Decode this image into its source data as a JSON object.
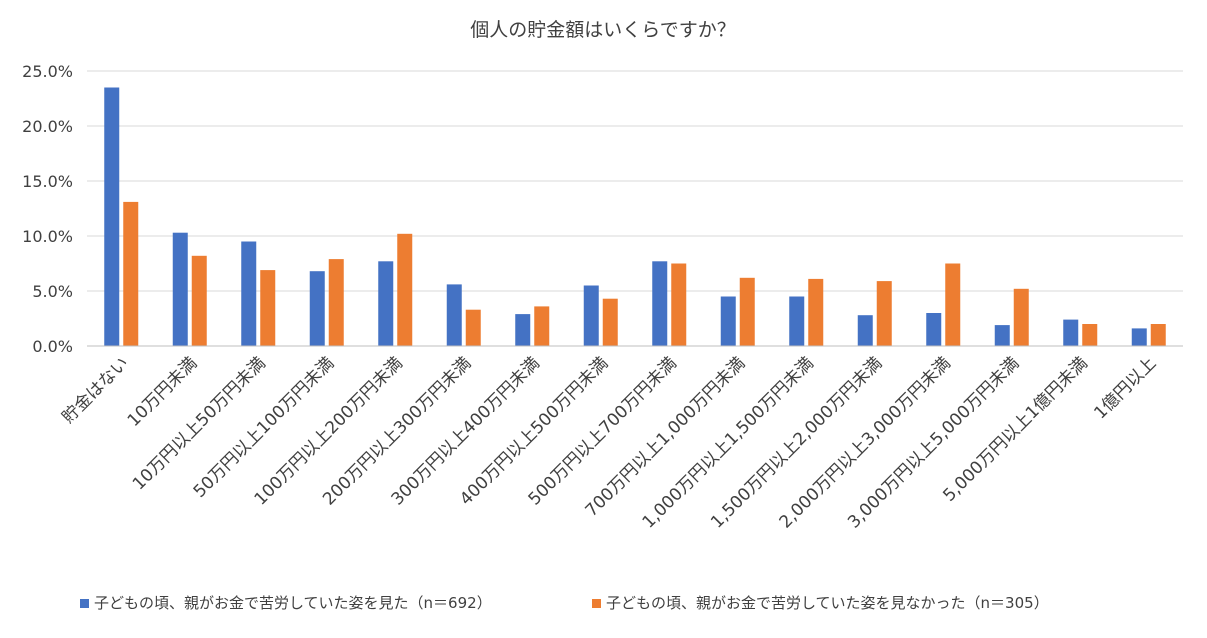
{
  "chart_data": {
    "type": "bar",
    "title": "個人の貯金額はいくらですか？",
    "xlabel": "",
    "ylabel": "",
    "ylim": [
      0,
      25
    ],
    "yticks": [
      "0.0%",
      "5.0%",
      "10.0%",
      "15.0%",
      "20.0%",
      "25.0%"
    ],
    "grid": true,
    "legend_position": "bottom",
    "categories": [
      "貯金はない",
      "10万円未満",
      "10万円以上50万円未満",
      "50万円以上100万円未満",
      "100万円以上200万円未満",
      "200万円以上300万円未満",
      "300万円以上400万円未満",
      "400万円以上500万円未満",
      "500万円以上700万円未満",
      "700万円以上1,000万円未満",
      "1,000万円以上1,500万円未満",
      "1,500万円以上2,000万円未満",
      "2,000万円以上3,000万円未満",
      "3,000万円以上5,000万円未満",
      "5,000万円以上1億円未満",
      "1億円以上"
    ],
    "series": [
      {
        "name": "子どもの頃、親がお金で苦労していた姿を見た（n＝692）",
        "color": "#4472c4",
        "values": [
          23.5,
          10.3,
          9.5,
          6.8,
          7.7,
          5.6,
          2.9,
          5.5,
          7.7,
          4.5,
          4.5,
          2.8,
          3.0,
          1.9,
          2.4,
          1.6
        ]
      },
      {
        "name": "子どもの頃、親がお金で苦労していた姿を見なかった（n＝305）",
        "color": "#ed7d31",
        "values": [
          13.1,
          8.2,
          6.9,
          7.9,
          10.2,
          3.3,
          3.6,
          4.3,
          7.5,
          6.2,
          6.1,
          5.9,
          7.5,
          5.2,
          2.0,
          2.0
        ]
      }
    ]
  }
}
